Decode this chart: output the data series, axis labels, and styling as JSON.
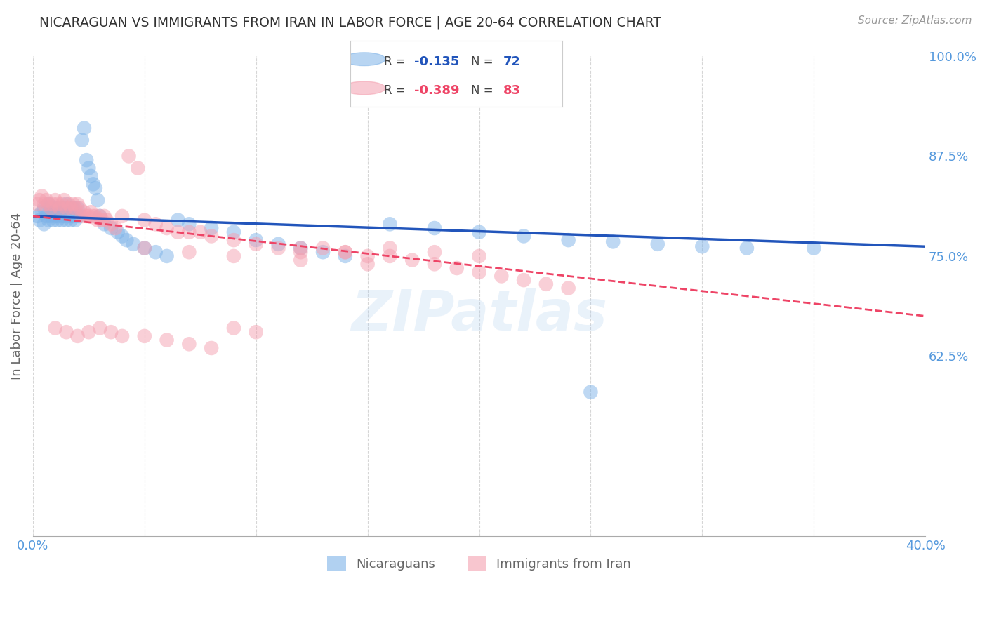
{
  "title": "NICARAGUAN VS IMMIGRANTS FROM IRAN IN LABOR FORCE | AGE 20-64 CORRELATION CHART",
  "source": "Source: ZipAtlas.com",
  "ylabel": "In Labor Force | Age 20-64",
  "xlim": [
    0.0,
    0.4
  ],
  "ylim": [
    0.4,
    1.0
  ],
  "xtick_positions": [
    0.0,
    0.05,
    0.1,
    0.15,
    0.2,
    0.25,
    0.3,
    0.35,
    0.4
  ],
  "xticklabels": [
    "0.0%",
    "",
    "",
    "",
    "",
    "",
    "",
    "",
    "40.0%"
  ],
  "yticks_right": [
    0.625,
    0.75,
    0.875,
    1.0
  ],
  "yticklabels_right": [
    "62.5%",
    "75.0%",
    "87.5%",
    "100.0%"
  ],
  "legend_blue_r": "-0.135",
  "legend_blue_n": "72",
  "legend_pink_r": "-0.389",
  "legend_pink_n": "83",
  "legend_label_blue": "Nicaraguans",
  "legend_label_pink": "Immigrants from Iran",
  "color_blue": "#7EB3E8",
  "color_pink": "#F4A0B0",
  "color_axis_labels": "#5599DD",
  "background_color": "#FFFFFF",
  "grid_color": "#CCCCCC",
  "title_color": "#333333",
  "blue_line_x0": 0.0,
  "blue_line_x1": 0.4,
  "blue_line_y0": 0.8,
  "blue_line_y1": 0.762,
  "pink_line_x0": 0.0,
  "pink_line_x1": 0.4,
  "pink_line_y0": 0.8,
  "pink_line_y1": 0.675,
  "blue_scatter_x": [
    0.002,
    0.003,
    0.004,
    0.005,
    0.005,
    0.006,
    0.007,
    0.007,
    0.008,
    0.008,
    0.009,
    0.009,
    0.01,
    0.01,
    0.011,
    0.011,
    0.012,
    0.012,
    0.013,
    0.013,
    0.014,
    0.014,
    0.015,
    0.015,
    0.016,
    0.016,
    0.017,
    0.017,
    0.018,
    0.018,
    0.019,
    0.02,
    0.02,
    0.021,
    0.022,
    0.023,
    0.024,
    0.025,
    0.026,
    0.027,
    0.028,
    0.029,
    0.03,
    0.032,
    0.035,
    0.038,
    0.04,
    0.042,
    0.045,
    0.05,
    0.055,
    0.06,
    0.065,
    0.07,
    0.08,
    0.09,
    0.1,
    0.11,
    0.12,
    0.13,
    0.14,
    0.16,
    0.18,
    0.2,
    0.22,
    0.24,
    0.26,
    0.28,
    0.3,
    0.32,
    0.25,
    0.35
  ],
  "blue_scatter_y": [
    0.8,
    0.795,
    0.805,
    0.81,
    0.79,
    0.8,
    0.815,
    0.795,
    0.8,
    0.81,
    0.795,
    0.805,
    0.8,
    0.81,
    0.8,
    0.795,
    0.805,
    0.81,
    0.8,
    0.795,
    0.8,
    0.81,
    0.815,
    0.795,
    0.8,
    0.805,
    0.8,
    0.795,
    0.8,
    0.81,
    0.795,
    0.8,
    0.81,
    0.8,
    0.895,
    0.91,
    0.87,
    0.86,
    0.85,
    0.84,
    0.835,
    0.82,
    0.8,
    0.79,
    0.785,
    0.78,
    0.775,
    0.77,
    0.765,
    0.76,
    0.755,
    0.75,
    0.795,
    0.79,
    0.785,
    0.78,
    0.77,
    0.765,
    0.76,
    0.755,
    0.75,
    0.79,
    0.785,
    0.78,
    0.775,
    0.77,
    0.768,
    0.765,
    0.762,
    0.76,
    0.58,
    0.76
  ],
  "pink_scatter_x": [
    0.002,
    0.003,
    0.004,
    0.005,
    0.006,
    0.007,
    0.008,
    0.009,
    0.01,
    0.011,
    0.012,
    0.013,
    0.014,
    0.015,
    0.016,
    0.017,
    0.018,
    0.019,
    0.02,
    0.021,
    0.022,
    0.023,
    0.024,
    0.025,
    0.026,
    0.027,
    0.028,
    0.029,
    0.03,
    0.031,
    0.032,
    0.033,
    0.035,
    0.037,
    0.04,
    0.043,
    0.047,
    0.05,
    0.055,
    0.06,
    0.065,
    0.07,
    0.075,
    0.08,
    0.09,
    0.1,
    0.11,
    0.12,
    0.13,
    0.14,
    0.15,
    0.16,
    0.17,
    0.18,
    0.19,
    0.2,
    0.21,
    0.22,
    0.23,
    0.24,
    0.01,
    0.015,
    0.02,
    0.025,
    0.03,
    0.035,
    0.04,
    0.05,
    0.06,
    0.07,
    0.08,
    0.09,
    0.1,
    0.12,
    0.14,
    0.16,
    0.18,
    0.2,
    0.05,
    0.07,
    0.09,
    0.12,
    0.15
  ],
  "pink_scatter_y": [
    0.815,
    0.82,
    0.825,
    0.815,
    0.82,
    0.815,
    0.81,
    0.815,
    0.82,
    0.815,
    0.81,
    0.815,
    0.82,
    0.81,
    0.815,
    0.81,
    0.815,
    0.81,
    0.815,
    0.81,
    0.8,
    0.805,
    0.8,
    0.8,
    0.805,
    0.8,
    0.8,
    0.795,
    0.8,
    0.795,
    0.8,
    0.795,
    0.79,
    0.785,
    0.8,
    0.875,
    0.86,
    0.795,
    0.79,
    0.785,
    0.78,
    0.78,
    0.78,
    0.775,
    0.77,
    0.765,
    0.76,
    0.755,
    0.76,
    0.755,
    0.75,
    0.75,
    0.745,
    0.74,
    0.735,
    0.73,
    0.725,
    0.72,
    0.715,
    0.71,
    0.66,
    0.655,
    0.65,
    0.655,
    0.66,
    0.655,
    0.65,
    0.65,
    0.645,
    0.64,
    0.635,
    0.66,
    0.655,
    0.76,
    0.755,
    0.76,
    0.755,
    0.75,
    0.76,
    0.755,
    0.75,
    0.745,
    0.74
  ]
}
